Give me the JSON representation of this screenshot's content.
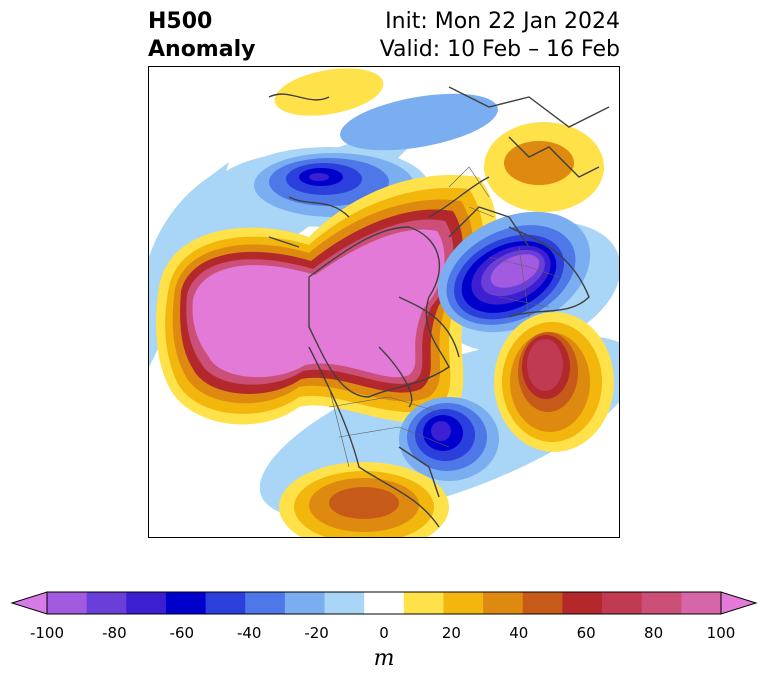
{
  "title": {
    "left_line1": "H500",
    "left_line2": "Anomaly",
    "right_line1": "Init: Mon 22 Jan 2024",
    "right_line2": "Valid: 10 Feb – 16 Feb"
  },
  "colorbar": {
    "unit": "m",
    "ticks": [
      "-100",
      "-80",
      "-60",
      "-40",
      "-20",
      "0",
      "20",
      "40",
      "60",
      "80",
      "100"
    ],
    "levels": [
      -100,
      -90,
      -80,
      -70,
      -60,
      -50,
      -40,
      -30,
      -20,
      -10,
      10,
      20,
      30,
      40,
      50,
      60,
      70,
      80,
      90,
      100
    ],
    "colors": [
      "#d77ae8",
      "#a25ae0",
      "#6a3fd9",
      "#3c1fd0",
      "#0000cc",
      "#2a3fdc",
      "#4e78e8",
      "#7aaef0",
      "#a9d6f7",
      "#ffffff",
      "#ffe14a",
      "#f2b60c",
      "#de8a10",
      "#c65a18",
      "#b3282a",
      "#c03a52",
      "#cc4f78",
      "#d666a8",
      "#e47ad8"
    ]
  }
}
